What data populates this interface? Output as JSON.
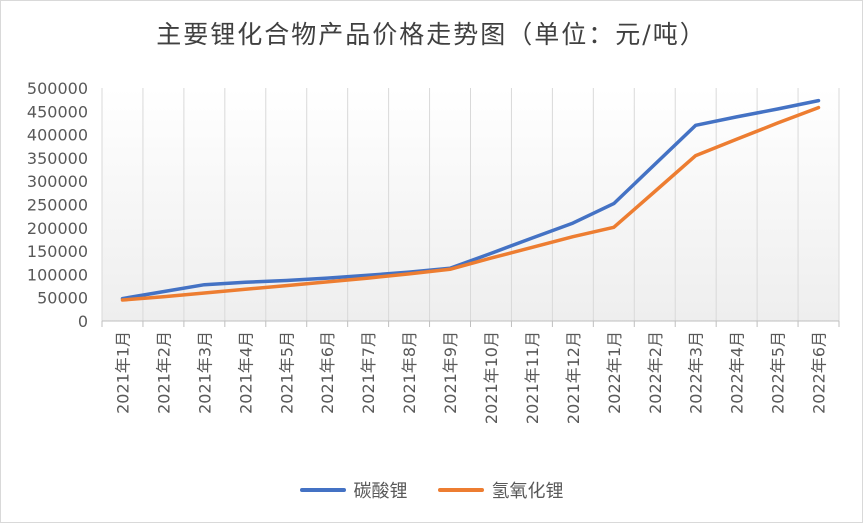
{
  "chart_data": {
    "type": "line",
    "title": "主要锂化合物产品价格走势图（单位：元/吨）",
    "categories": [
      "2021年1月",
      "2021年2月",
      "2021年3月",
      "2021年4月",
      "2021年5月",
      "2021年6月",
      "2021年7月",
      "2021年8月",
      "2021年9月",
      "2021年10月",
      "2021年11月",
      "2021年12月",
      "2022年1月",
      "2022年2月",
      "2022年3月",
      "2022年4月",
      "2022年5月",
      "2022年6月"
    ],
    "ylim": [
      0,
      500000
    ],
    "yticks": [
      "0",
      "50000",
      "100000",
      "150000",
      "200000",
      "250000",
      "300000",
      "350000",
      "400000",
      "450000",
      "500000"
    ],
    "series": [
      {
        "name": "碳酸锂",
        "color": "#4472C4",
        "values": [
          48000,
          63000,
          78000,
          83000,
          87000,
          92000,
          98000,
          105000,
          113000,
          145000,
          178000,
          210000,
          252000,
          336000,
          420000,
          438000,
          455000,
          473000
        ]
      },
      {
        "name": "氢氧化锂",
        "color": "#ED7D31",
        "values": [
          45000,
          52000,
          60000,
          68000,
          76000,
          84000,
          92000,
          101000,
          111000,
          135000,
          158000,
          181000,
          201000,
          278000,
          355000,
          390000,
          425000,
          458000
        ]
      }
    ]
  }
}
